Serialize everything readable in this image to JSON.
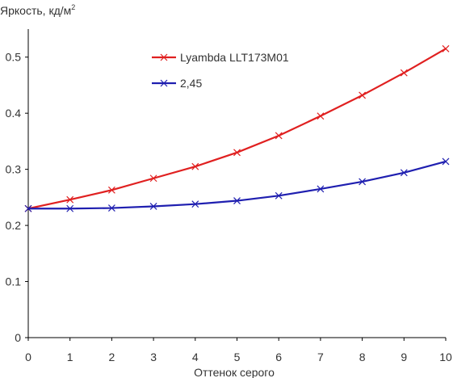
{
  "chart_data": {
    "type": "line",
    "ylabel_main": "Яркость, кд/м",
    "ylabel_sup": "2",
    "xlabel": "Оттенок серого",
    "xlim": [
      0,
      10
    ],
    "ylim": [
      0,
      0.55
    ],
    "x": [
      0,
      1,
      2,
      3,
      4,
      5,
      6,
      7,
      8,
      9,
      10
    ],
    "x_ticks": [
      "0",
      "1",
      "2",
      "3",
      "4",
      "5",
      "6",
      "7",
      "8",
      "9",
      "10"
    ],
    "y_ticks": [
      {
        "value": 0,
        "label": "0"
      },
      {
        "value": 0.1,
        "label": "0.1"
      },
      {
        "value": 0.2,
        "label": "0.2"
      },
      {
        "value": 0.3,
        "label": "0.3"
      },
      {
        "value": 0.4,
        "label": "0.4"
      },
      {
        "value": 0.5,
        "label": "0.5"
      }
    ],
    "legend_placement": "top-center",
    "grid": false,
    "series": [
      {
        "name": "Lyambda LLT173M01",
        "color": "#e02020",
        "marker": "x",
        "values": [
          0.23,
          0.246,
          0.263,
          0.284,
          0.305,
          0.33,
          0.36,
          0.395,
          0.432,
          0.472,
          0.515
        ]
      },
      {
        "name": "2,45",
        "color": "#1f1fb0",
        "marker": "x",
        "values": [
          0.23,
          0.23,
          0.231,
          0.234,
          0.238,
          0.244,
          0.253,
          0.265,
          0.278,
          0.294,
          0.314
        ]
      }
    ]
  }
}
